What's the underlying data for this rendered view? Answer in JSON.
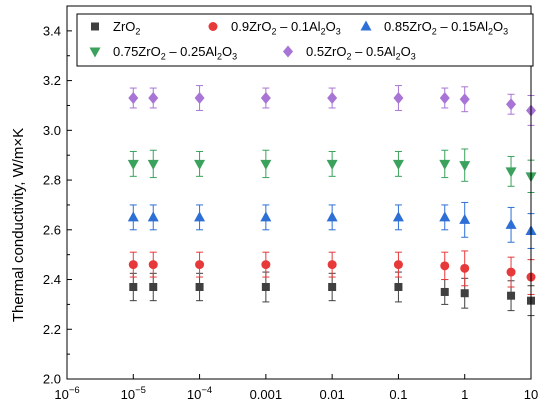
{
  "chart_data": {
    "type": "scatter",
    "title": "",
    "xlabel": "",
    "ylabel": "Thermal conductivity, W/m×K",
    "x_scale": "log",
    "xlim": [
      1e-06,
      10
    ],
    "ylim": [
      2.0,
      3.5
    ],
    "x_ticks": [
      1e-06,
      1e-05,
      0.0001,
      0.001,
      0.01,
      0.1,
      1,
      10
    ],
    "x_tick_labels": [
      {
        "base": "10",
        "exp": "−6"
      },
      {
        "base": "10",
        "exp": "−5"
      },
      {
        "base": "10",
        "exp": "−4"
      },
      {
        "base": "0.001",
        "exp": ""
      },
      {
        "base": "0.01",
        "exp": ""
      },
      {
        "base": "0.1",
        "exp": ""
      },
      {
        "base": "1",
        "exp": ""
      },
      {
        "base": "10",
        "exp": ""
      }
    ],
    "y_ticks": [
      2.0,
      2.2,
      2.4,
      2.6,
      2.8,
      3.0,
      3.2,
      3.4
    ],
    "y_tick_labels": [
      "2.0",
      "2.2",
      "2.4",
      "2.6",
      "2.8",
      "3.0",
      "3.2",
      "3.4"
    ],
    "grid": false,
    "legend_position": "top",
    "x": [
      1e-05,
      2e-05,
      0.0001,
      0.001,
      0.01,
      0.1,
      0.5,
      1,
      5,
      10
    ],
    "series": [
      {
        "name": "ZrO2",
        "legend_parts": [
          {
            "t": "ZrO",
            "s": ""
          },
          {
            "t": "2",
            "s": "sub"
          }
        ],
        "marker": "square",
        "color": "#404040",
        "values": [
          2.37,
          2.37,
          2.37,
          2.37,
          2.37,
          2.37,
          2.35,
          2.345,
          2.335,
          2.315
        ],
        "errors": [
          0.055,
          0.055,
          0.055,
          0.06,
          0.055,
          0.06,
          0.05,
          0.06,
          0.06,
          0.06
        ]
      },
      {
        "name": "0.9ZrO2 – 0.1Al2O3",
        "legend_parts": [
          {
            "t": "0.9ZrO",
            "s": ""
          },
          {
            "t": "2",
            "s": "sub"
          },
          {
            "t": " – 0.1Al",
            "s": ""
          },
          {
            "t": "2",
            "s": "sub"
          },
          {
            "t": "O",
            "s": ""
          },
          {
            "t": "3",
            "s": "sub"
          }
        ],
        "marker": "circle",
        "color": "#e8393a",
        "values": [
          2.46,
          2.46,
          2.46,
          2.46,
          2.46,
          2.46,
          2.455,
          2.445,
          2.43,
          2.41
        ],
        "errors": [
          0.05,
          0.05,
          0.05,
          0.05,
          0.05,
          0.05,
          0.055,
          0.07,
          0.06,
          0.07
        ]
      },
      {
        "name": "0.85ZrO2 – 0.15Al2O3",
        "legend_parts": [
          {
            "t": "0.85ZrO",
            "s": ""
          },
          {
            "t": "2",
            "s": "sub"
          },
          {
            "t": " – 0.15Al",
            "s": ""
          },
          {
            "t": "2",
            "s": "sub"
          },
          {
            "t": "O",
            "s": ""
          },
          {
            "t": "3",
            "s": "sub"
          }
        ],
        "marker": "triangle-up",
        "color": "#2e6fd6",
        "values": [
          2.65,
          2.65,
          2.65,
          2.65,
          2.65,
          2.65,
          2.65,
          2.64,
          2.62,
          2.595
        ],
        "errors": [
          0.05,
          0.05,
          0.05,
          0.05,
          0.05,
          0.05,
          0.05,
          0.07,
          0.07,
          0.07
        ]
      },
      {
        "name": "0.75ZrO2 – 0.25Al2O3",
        "legend_parts": [
          {
            "t": "0.75ZrO",
            "s": ""
          },
          {
            "t": "2",
            "s": "sub"
          },
          {
            "t": " – 0.25Al",
            "s": ""
          },
          {
            "t": "2",
            "s": "sub"
          },
          {
            "t": "O",
            "s": ""
          },
          {
            "t": "3",
            "s": "sub"
          }
        ],
        "marker": "triangle-down",
        "color": "#3aa25c",
        "values": [
          2.865,
          2.865,
          2.865,
          2.865,
          2.865,
          2.865,
          2.865,
          2.86,
          2.835,
          2.815
        ],
        "errors": [
          0.05,
          0.055,
          0.05,
          0.055,
          0.05,
          0.05,
          0.055,
          0.065,
          0.06,
          0.065
        ]
      },
      {
        "name": "0.5ZrO2 – 0.5Al2O3",
        "legend_parts": [
          {
            "t": "0.5ZrO",
            "s": ""
          },
          {
            "t": "2",
            "s": "sub"
          },
          {
            "t": " – 0.5Al",
            "s": ""
          },
          {
            "t": "2",
            "s": "sub"
          },
          {
            "t": "O",
            "s": ""
          },
          {
            "t": "3",
            "s": "sub"
          }
        ],
        "marker": "diamond",
        "color": "#a875d6",
        "values": [
          3.13,
          3.13,
          3.13,
          3.13,
          3.13,
          3.13,
          3.13,
          3.125,
          3.105,
          3.08
        ],
        "errors": [
          0.04,
          0.04,
          0.05,
          0.04,
          0.04,
          0.05,
          0.04,
          0.05,
          0.04,
          0.06
        ]
      }
    ]
  }
}
